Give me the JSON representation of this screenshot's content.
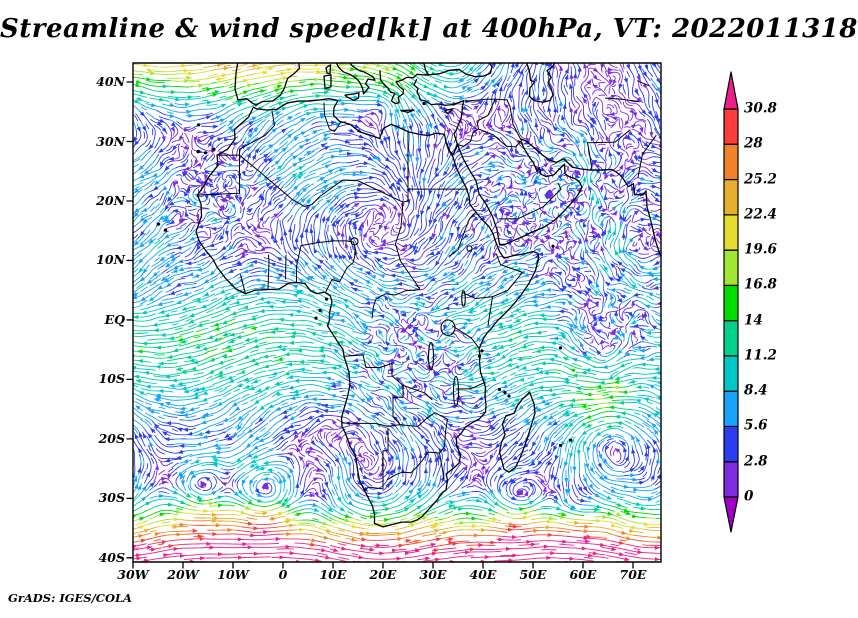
{
  "title": "Streamline & wind speed[kt] at 400hPa, VT: 2022011318",
  "attribution": "GrADS: IGES/COLA",
  "axes": {
    "lat_ticks": [
      {
        "label": "40N",
        "deg": 40
      },
      {
        "label": "30N",
        "deg": 30
      },
      {
        "label": "20N",
        "deg": 20
      },
      {
        "label": "10N",
        "deg": 10
      },
      {
        "label": "EQ",
        "deg": 0
      },
      {
        "label": "10S",
        "deg": -10
      },
      {
        "label": "20S",
        "deg": -20
      },
      {
        "label": "30S",
        "deg": -30
      },
      {
        "label": "40S",
        "deg": -40
      }
    ],
    "lon_ticks": [
      {
        "label": "30W",
        "deg": -30
      },
      {
        "label": "20W",
        "deg": -20
      },
      {
        "label": "10W",
        "deg": -10
      },
      {
        "label": "0",
        "deg": 0
      },
      {
        "label": "10E",
        "deg": 10
      },
      {
        "label": "20E",
        "deg": 20
      },
      {
        "label": "30E",
        "deg": 30
      },
      {
        "label": "40E",
        "deg": 40
      },
      {
        "label": "50E",
        "deg": 50
      },
      {
        "label": "60E",
        "deg": 60
      },
      {
        "label": "70E",
        "deg": 70
      }
    ]
  },
  "colorbar": {
    "levels": [
      0,
      2.8,
      5.6,
      8.4,
      11.2,
      14,
      16.8,
      19.6,
      22.4,
      25.2,
      28,
      30.8
    ],
    "labels": [
      "0",
      "2.8",
      "5.6",
      "8.4",
      "11.2",
      "14",
      "16.8",
      "19.6",
      "22.4",
      "25.2",
      "28",
      "30.8"
    ],
    "segment_colors": [
      "#7d2ce0",
      "#2b3df0",
      "#18a2fa",
      "#00c8c8",
      "#00d28e",
      "#00dc00",
      "#a0e632",
      "#e6dc32",
      "#e6af2e",
      "#f08228",
      "#fa3c3c"
    ],
    "below_color": "#a000c8",
    "above_color": "#ee1e8c"
  },
  "chart_data": {
    "type": "streamline-map",
    "title": "Streamline & wind speed[kt] at 400hPa, VT: 2022011318",
    "variable": "wind speed shown by streamline color",
    "units": "kt",
    "pressure_level_hPa": 400,
    "valid_time": "2022011318",
    "attribution": "GrADS: IGES/COLA",
    "region": {
      "lon_min": -30,
      "lon_max": 75.6,
      "lat_min": -40.7,
      "lat_max": 43.2
    },
    "x_axis": {
      "tick_labels": [
        "30W",
        "20W",
        "10W",
        "0",
        "10E",
        "20E",
        "30E",
        "40E",
        "50E",
        "60E",
        "70E"
      ],
      "tick_lons": [
        -30,
        -20,
        -10,
        0,
        10,
        20,
        30,
        40,
        50,
        60,
        70
      ]
    },
    "y_axis": {
      "tick_labels": [
        "40N",
        "30N",
        "20N",
        "10N",
        "EQ",
        "10S",
        "20S",
        "30S",
        "40S"
      ],
      "tick_lats": [
        40,
        30,
        20,
        10,
        0,
        -10,
        -20,
        -30,
        -40
      ]
    },
    "colorbar": {
      "orientation": "vertical",
      "levels_kt": [
        0,
        2.8,
        5.6,
        8.4,
        11.2,
        14,
        16.8,
        19.6,
        22.4,
        25.2,
        28,
        30.8
      ],
      "tick_labels": [
        "0",
        "2.8",
        "5.6",
        "8.4",
        "11.2",
        "14",
        "16.8",
        "19.6",
        "22.4",
        "25.2",
        "28",
        "30.8"
      ],
      "segment_colors_low_to_high": [
        "#7d2ce0",
        "#2b3df0",
        "#18a2fa",
        "#00c8c8",
        "#00d28e",
        "#00dc00",
        "#a0e632",
        "#e6dc32",
        "#e6af2e",
        "#f08228",
        "#fa3c3c"
      ],
      "below_min_color": "#a000c8",
      "above_max_color": "#ee1e8c"
    },
    "depicted_features": [
      "Strong westerly jet (25-33+ kt, orange/red/pink) along 35S-40S across the whole domain",
      "Cyclonic spiral vortices with calm purple cores near 16W/28S, 4W/29S, 47E/31S and 57E/33S",
      "Moderate tropical easterlies (8-15 kt, cyan/green) over the equatorial Atlantic and Indian Ocean",
      "Very weak chaotic flow (<5 kt, purple) over the Congo basin, Arabia and the northeast corner",
      "Yellow/orange westerly streaks (18-28 kt) along the northern edge near 38-43N",
      "Large gyres east of Madagascar around 60-70E"
    ]
  }
}
